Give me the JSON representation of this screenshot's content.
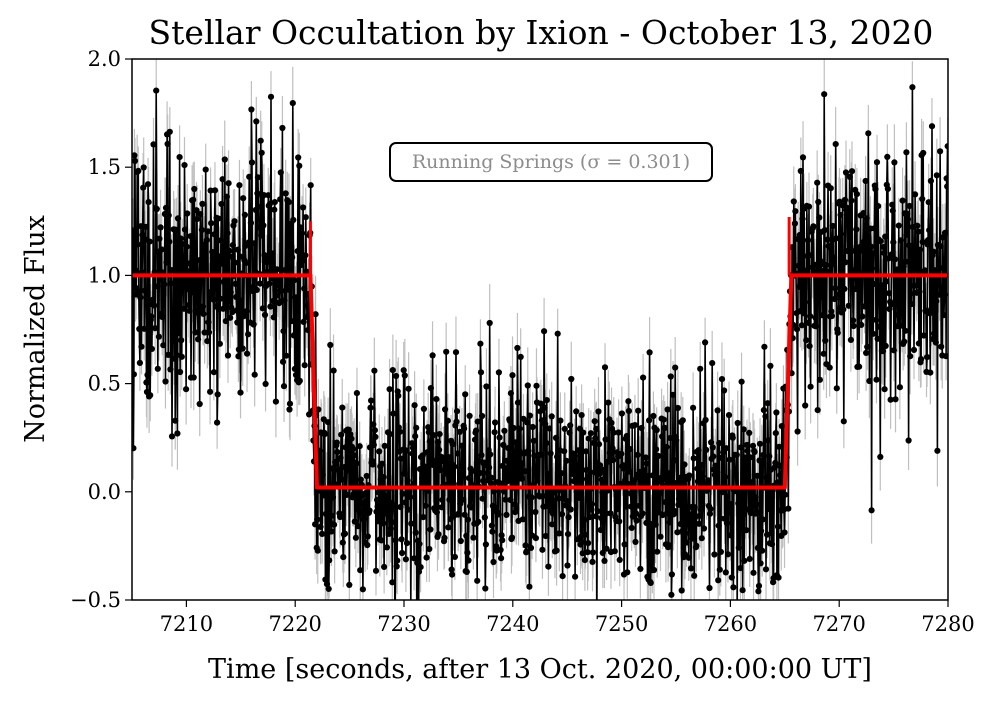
{
  "chart_data": {
    "type": "scatter",
    "title": "Stellar Occultation by Ixion - October 13, 2020",
    "xlabel": "Time [seconds, after 13 Oct. 2020, 00:00:00 UT]",
    "ylabel": "Normalized Flux",
    "xlim": [
      7205,
      7280
    ],
    "ylim": [
      -0.5,
      2.0
    ],
    "x_ticks": [
      7210,
      7220,
      7230,
      7240,
      7250,
      7260,
      7270,
      7280
    ],
    "y_ticks": [
      -0.5,
      0.0,
      0.5,
      1.0,
      1.5,
      2.0
    ],
    "x_tick_labels": [
      "7210",
      "7220",
      "7230",
      "7240",
      "7250",
      "7260",
      "7270",
      "7280"
    ],
    "y_tick_labels": [
      "−0.5",
      "0.0",
      "0.5",
      "1.0",
      "1.5",
      "2.0"
    ],
    "annotation": "Running Springs (σ = 0.301)",
    "grid": false,
    "colors": {
      "data": "#000000",
      "errorbar": "#bfbfbf",
      "model": "#ff0000",
      "annotation_text": "#8c8c8c"
    },
    "series": [
      {
        "kind": "observed-light-curve-with-error-bars",
        "sigma": 0.301,
        "x_range": [
          7205,
          7280
        ],
        "approx_sample_count": 1500,
        "baseline_flux": 1.0,
        "occultation_flux": 0.0
      },
      {
        "kind": "model-light-curve",
        "segments": [
          {
            "x": [
              7205,
              7221.4
            ],
            "y": [
              1.0,
              1.0
            ]
          },
          {
            "x": [
              7221.4,
              7222.0
            ],
            "y": [
              1.0,
              0.02
            ]
          },
          {
            "x": [
              7222.0,
              7265.0
            ],
            "y": [
              0.02,
              0.02
            ]
          },
          {
            "x": [
              7265.0,
              7265.6
            ],
            "y": [
              0.02,
              1.0
            ]
          },
          {
            "x": [
              7265.6,
              7280
            ],
            "y": [
              1.0,
              1.0
            ]
          }
        ],
        "ingress_time": 7221.6,
        "egress_time": 7265.2
      }
    ]
  }
}
